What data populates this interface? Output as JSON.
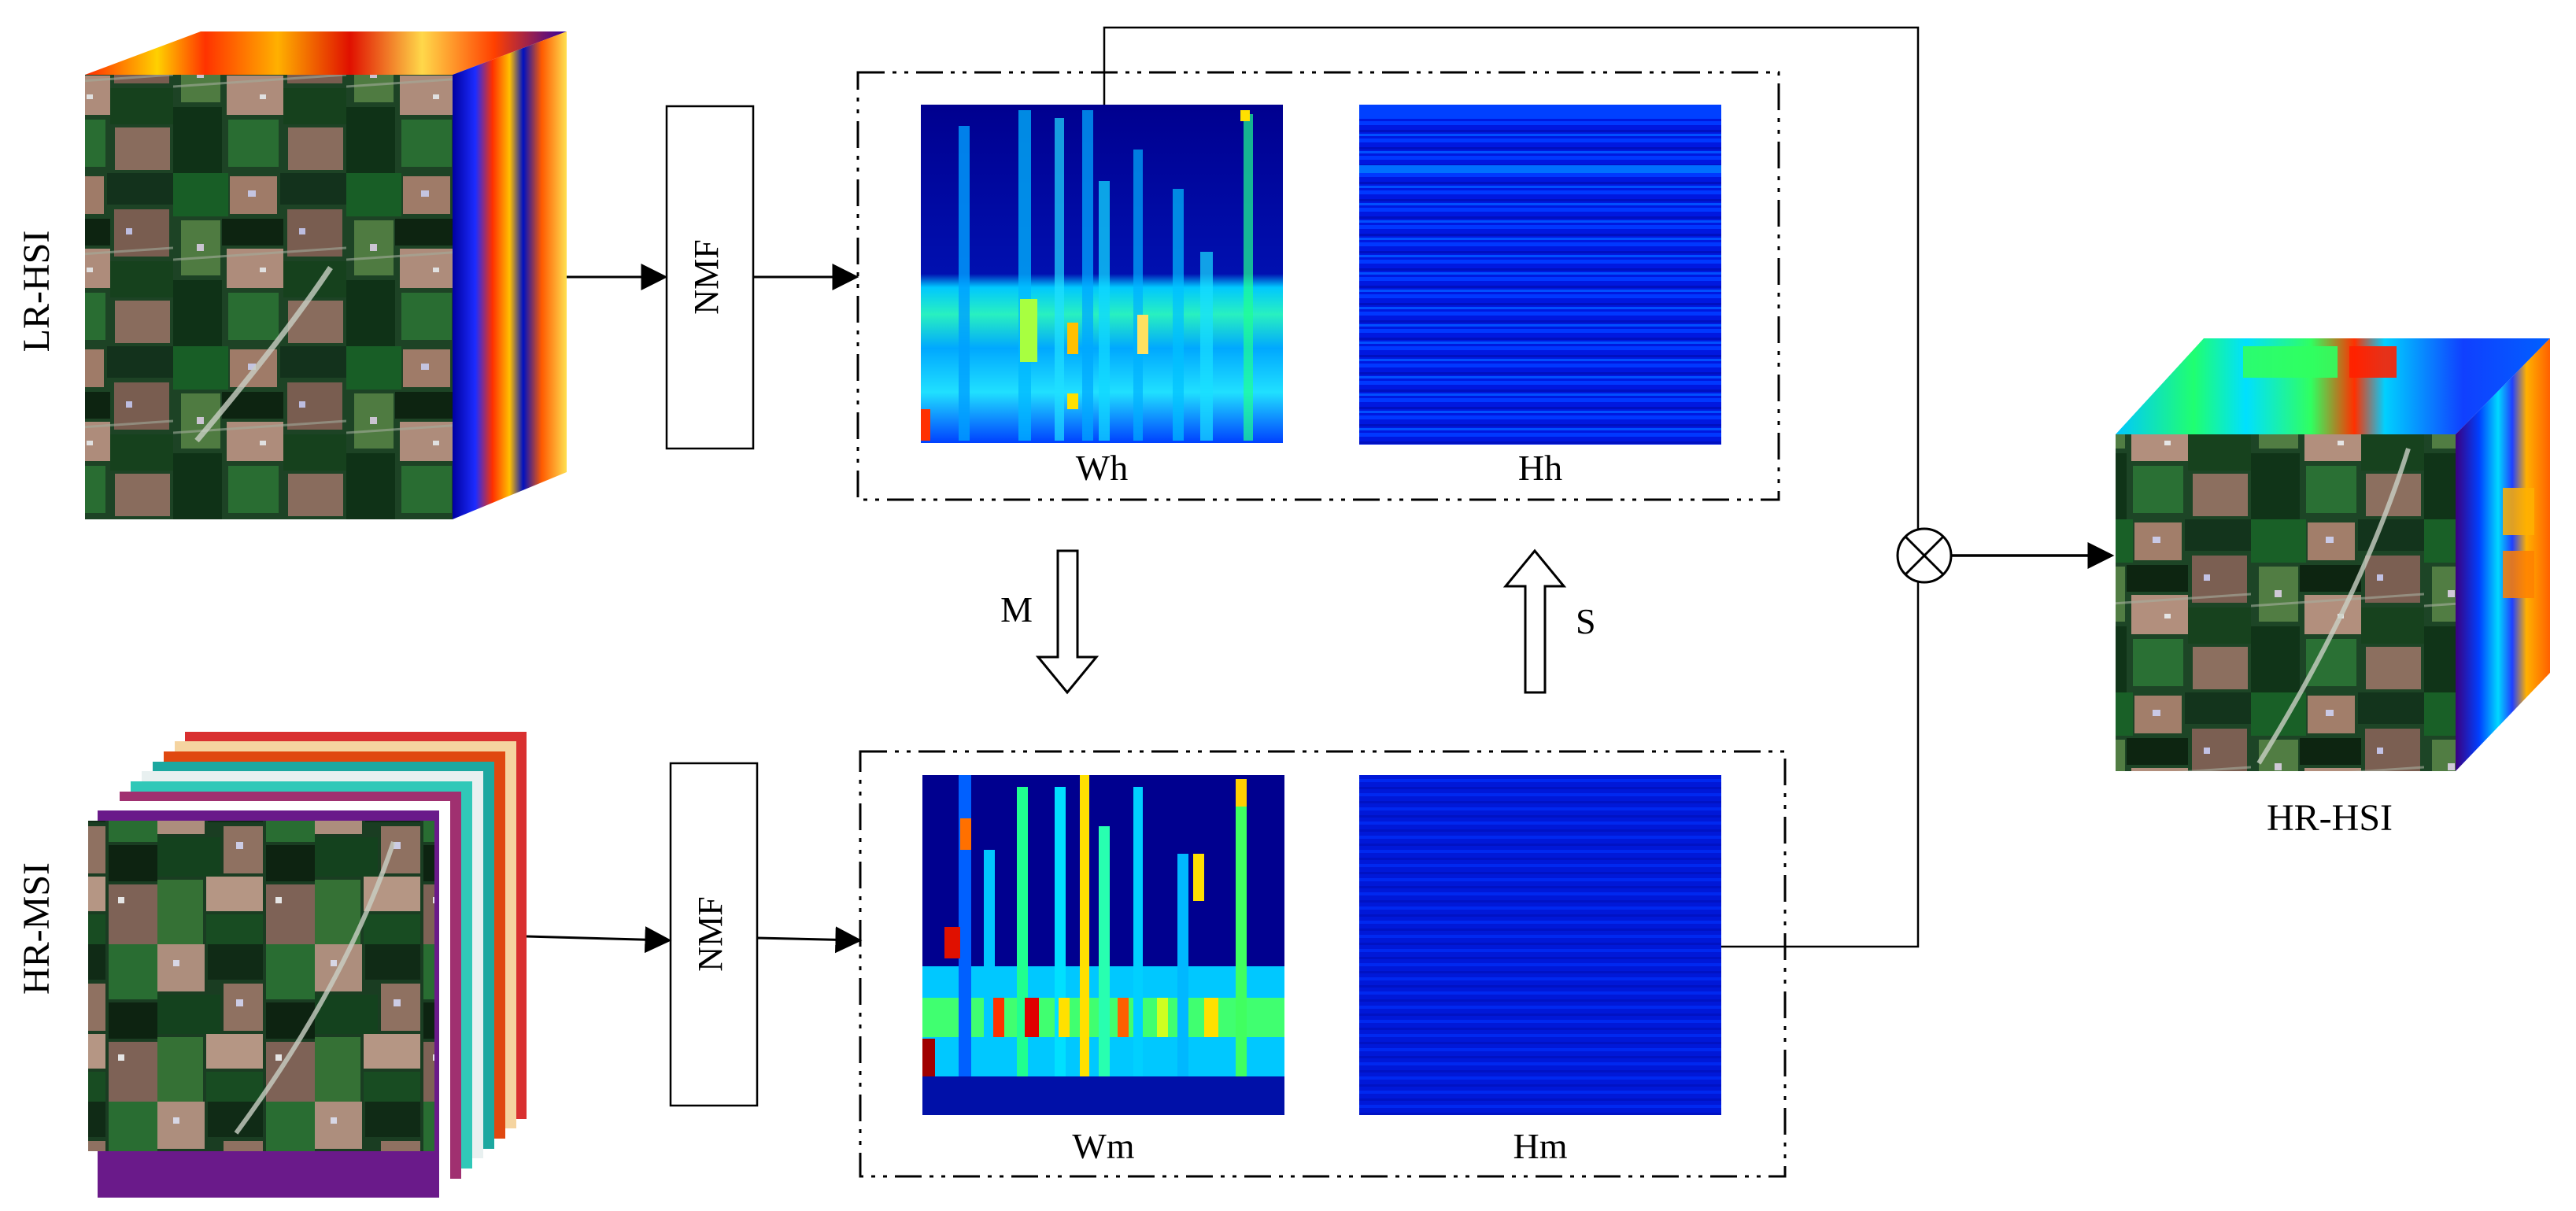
{
  "inputs": {
    "lr_hsi_label": "LR-HSI",
    "hr_msi_label": "HR-MSI"
  },
  "processes": {
    "nmf_top_label": "NMF",
    "nmf_bottom_label": "NMF"
  },
  "hyperspectral_factors": {
    "wh_label": "Wh",
    "hh_label": "Hh"
  },
  "multispectral_factors": {
    "wm_label": "Wm",
    "hm_label": "Hm"
  },
  "transfers": {
    "m_label": "M",
    "s_label": "S"
  },
  "output": {
    "hr_hsi_label": "HR-HSI"
  },
  "colors": {
    "jet_dark": "#00008f",
    "jet_blue": "#0032ff",
    "jet_cyan": "#00e5ff",
    "jet_green": "#36ff7a",
    "jet_yellow": "#ffe000",
    "jet_orange": "#ff7a00",
    "jet_red": "#d40000",
    "field_green": "#1f5a28",
    "field_tan": "#b48e77"
  },
  "icons": {
    "multiply": "circled-times-icon"
  }
}
